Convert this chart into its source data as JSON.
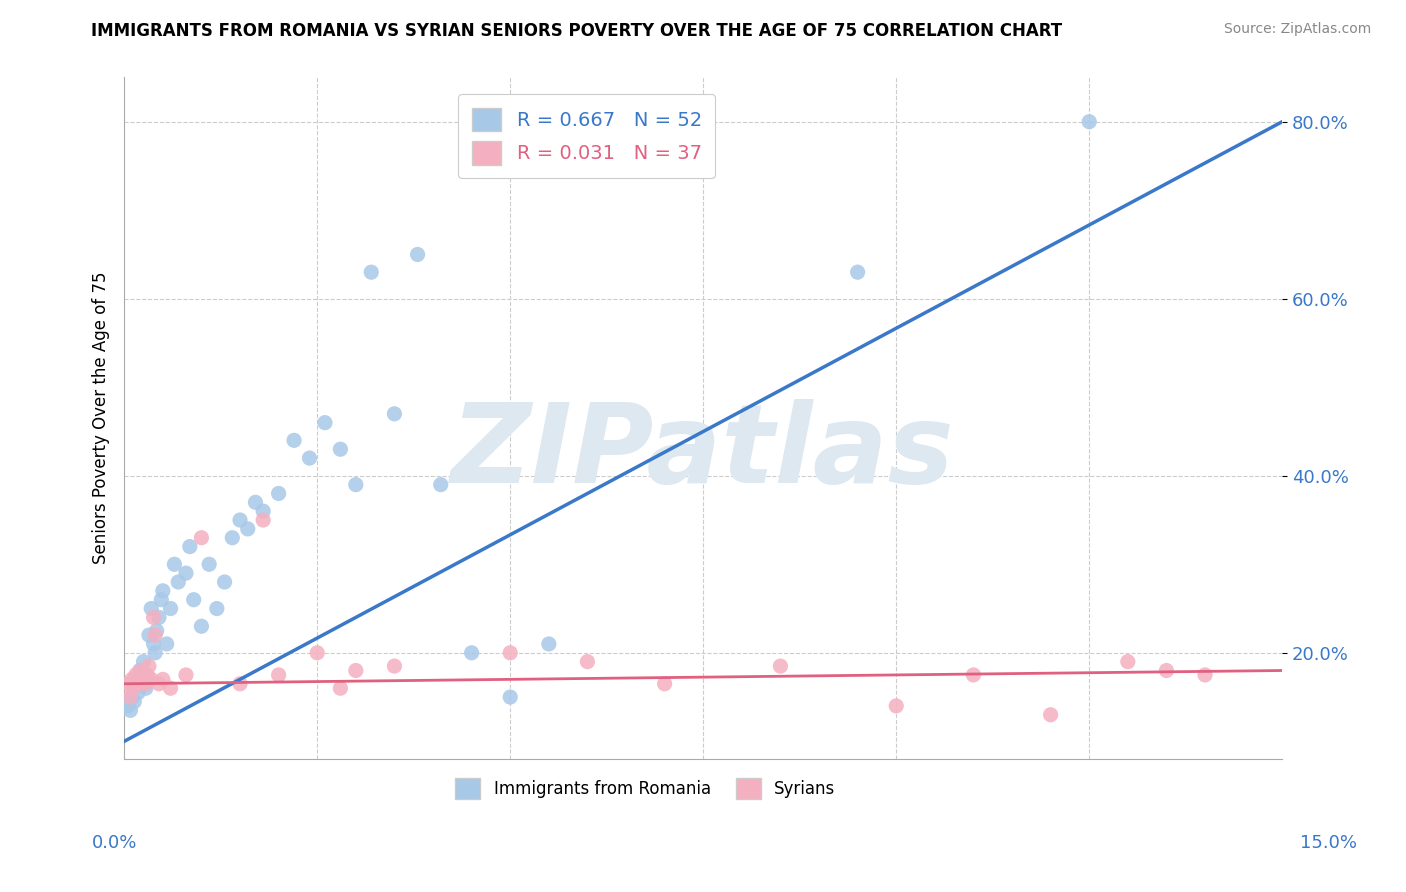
{
  "title": "IMMIGRANTS FROM ROMANIA VS SYRIAN SENIORS POVERTY OVER THE AGE OF 75 CORRELATION CHART",
  "source": "Source: ZipAtlas.com",
  "xlabel_bottom_left": "0.0%",
  "xlabel_bottom_right": "15.0%",
  "ylabel": "Seniors Poverty Over the Age of 75",
  "xlim": [
    0.0,
    15.0
  ],
  "ylim": [
    8.0,
    85.0
  ],
  "ytick_values": [
    20.0,
    40.0,
    60.0,
    80.0
  ],
  "romania_R": 0.667,
  "romania_N": 52,
  "syria_R": 0.031,
  "syria_N": 37,
  "romania_color": "#a8c8e8",
  "syria_color": "#f4b0c0",
  "romania_line_color": "#3a78c9",
  "syria_line_color": "#e06080",
  "background_color": "#ffffff",
  "watermark_text": "ZIPatlas",
  "watermark_color": "#dde8f0",
  "romania_x": [
    0.05,
    0.08,
    0.1,
    0.12,
    0.13,
    0.15,
    0.15,
    0.18,
    0.2,
    0.22,
    0.25,
    0.28,
    0.3,
    0.32,
    0.35,
    0.38,
    0.4,
    0.42,
    0.45,
    0.48,
    0.5,
    0.55,
    0.6,
    0.65,
    0.7,
    0.8,
    0.85,
    0.9,
    1.0,
    1.1,
    1.2,
    1.3,
    1.4,
    1.5,
    1.6,
    1.7,
    1.8,
    2.0,
    2.2,
    2.4,
    2.6,
    2.8,
    3.0,
    3.2,
    3.5,
    3.8,
    4.1,
    4.5,
    5.0,
    5.5,
    9.5,
    12.5
  ],
  "romania_y": [
    14.0,
    13.5,
    15.0,
    16.0,
    14.5,
    16.5,
    17.0,
    15.5,
    18.0,
    17.5,
    19.0,
    16.0,
    17.0,
    22.0,
    25.0,
    21.0,
    20.0,
    22.5,
    24.0,
    26.0,
    27.0,
    21.0,
    25.0,
    30.0,
    28.0,
    29.0,
    32.0,
    26.0,
    23.0,
    30.0,
    25.0,
    28.0,
    33.0,
    35.0,
    34.0,
    37.0,
    36.0,
    38.0,
    44.0,
    42.0,
    46.0,
    43.0,
    39.0,
    63.0,
    47.0,
    65.0,
    39.0,
    20.0,
    15.0,
    21.0,
    63.0,
    80.0
  ],
  "syria_x": [
    0.05,
    0.08,
    0.1,
    0.12,
    0.15,
    0.18,
    0.2,
    0.22,
    0.25,
    0.28,
    0.3,
    0.32,
    0.35,
    0.38,
    0.4,
    0.45,
    0.5,
    0.6,
    0.8,
    1.0,
    1.5,
    1.8,
    2.0,
    2.5,
    2.8,
    3.0,
    3.5,
    5.0,
    6.0,
    7.0,
    8.5,
    10.0,
    11.0,
    12.0,
    13.0,
    13.5,
    14.0
  ],
  "syria_y": [
    16.5,
    15.0,
    17.0,
    16.0,
    17.5,
    16.5,
    17.0,
    18.0,
    17.0,
    16.5,
    17.5,
    18.5,
    17.0,
    24.0,
    22.0,
    16.5,
    17.0,
    16.0,
    17.5,
    33.0,
    16.5,
    35.0,
    17.5,
    20.0,
    16.0,
    18.0,
    18.5,
    20.0,
    19.0,
    16.5,
    18.5,
    14.0,
    17.5,
    13.0,
    19.0,
    18.0,
    17.5
  ]
}
